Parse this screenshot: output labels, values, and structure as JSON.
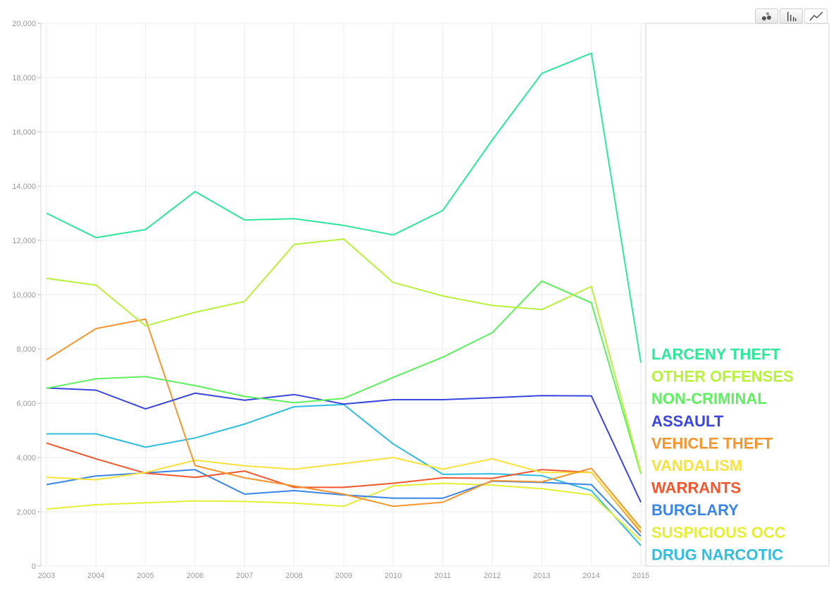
{
  "toolbar": {
    "buttons": [
      {
        "icon": "scatter-view-icon",
        "active": false
      },
      {
        "icon": "bar-view-icon",
        "active": false
      },
      {
        "icon": "line-view-icon",
        "active": true
      }
    ]
  },
  "chart_data": {
    "type": "line",
    "title": "",
    "xlabel": "",
    "ylabel": "",
    "x": [
      "2003",
      "2004",
      "2005",
      "2006",
      "2007",
      "2008",
      "2009",
      "2010",
      "2011",
      "2012",
      "2013",
      "2014",
      "2015"
    ],
    "ylim": [
      0,
      20000
    ],
    "yticks": [
      0,
      2000,
      4000,
      6000,
      8000,
      10000,
      12000,
      14000,
      16000,
      18000,
      20000
    ],
    "ytick_labels": [
      "0",
      "2,000",
      "4,000",
      "6,000",
      "8,000",
      "10,000",
      "12,000",
      "14,000",
      "16,000",
      "18,000",
      "20,000"
    ],
    "grid": true,
    "legend_position": "right",
    "series": [
      {
        "name": "LARCENY THEFT",
        "color": "#2ee89b",
        "values": [
          13000,
          12100,
          12400,
          13800,
          12750,
          12800,
          12550,
          12200,
          13100,
          15700,
          18150,
          18900,
          7500
        ]
      },
      {
        "name": "OTHER OFFENSES",
        "color": "#b8f23c",
        "values": [
          10600,
          10350,
          8850,
          9350,
          9750,
          11850,
          12050,
          10450,
          9950,
          9600,
          9450,
          10300,
          3450
        ]
      },
      {
        "name": "NON-CRIMINAL",
        "color": "#5cf25c",
        "values": [
          6550,
          6900,
          6980,
          6650,
          6250,
          6020,
          6180,
          6950,
          7700,
          8600,
          10500,
          9700,
          3400
        ]
      },
      {
        "name": "ASSAULT",
        "color": "#3a46e0",
        "values": [
          6560,
          6480,
          5790,
          6370,
          6110,
          6320,
          5970,
          6130,
          6130,
          6200,
          6280,
          6270,
          2350
        ]
      },
      {
        "name": "VEHICLE THEFT",
        "color": "#f7962f",
        "values": [
          7600,
          8750,
          9100,
          3700,
          3250,
          2950,
          2650,
          2200,
          2350,
          3150,
          3100,
          3600,
          1400
        ]
      },
      {
        "name": "VANDALISM",
        "color": "#f7e33c",
        "values": [
          3270,
          3180,
          3450,
          3900,
          3690,
          3570,
          3780,
          4000,
          3570,
          3950,
          3450,
          3450,
          1300
        ]
      },
      {
        "name": "WARRANTS",
        "color": "#f2572e",
        "values": [
          4530,
          3950,
          3420,
          3270,
          3500,
          2900,
          2900,
          3050,
          3250,
          3230,
          3550,
          3450,
          1250
        ]
      },
      {
        "name": "BURGLARY",
        "color": "#3a86e8",
        "values": [
          3000,
          3320,
          3430,
          3550,
          2650,
          2780,
          2620,
          2500,
          2500,
          3130,
          3080,
          3000,
          1100
        ]
      },
      {
        "name": "SUSPICIOUS OCC",
        "color": "#e4f033",
        "values": [
          2100,
          2260,
          2330,
          2400,
          2380,
          2320,
          2200,
          2950,
          3050,
          2980,
          2850,
          2620,
          950
        ]
      },
      {
        "name": "DRUG NARCOTIC",
        "color": "#2fbde0",
        "values": [
          4870,
          4870,
          4380,
          4720,
          5230,
          5870,
          5950,
          4500,
          3380,
          3400,
          3330,
          2780,
          750
        ]
      }
    ]
  }
}
